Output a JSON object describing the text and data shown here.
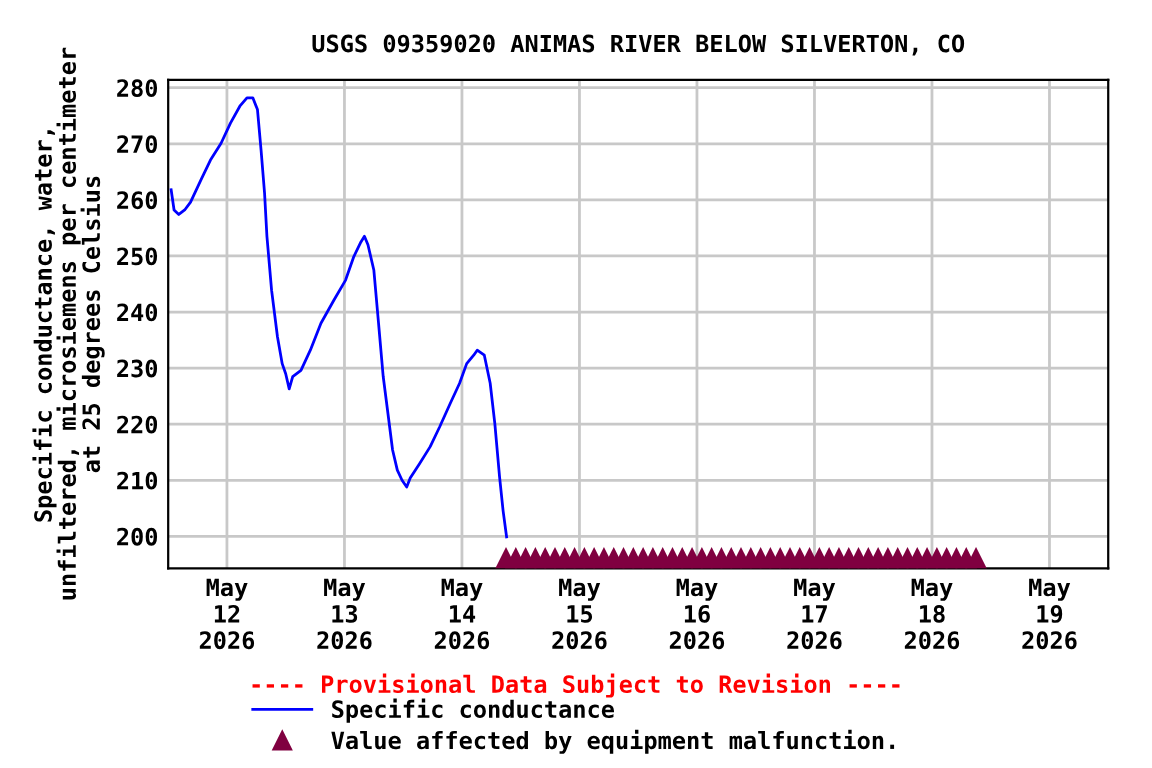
{
  "chart_data": {
    "type": "line",
    "title": "USGS 09359020 ANIMAS RIVER BELOW SILVERTON, CO",
    "ylabel": "Specific conductance, water,\nunfiltered, microsiemens per centimeter\nat 25 degrees Celsius",
    "xlim": [
      "2026-05-11T12:00",
      "2026-05-19T12:00"
    ],
    "xticks": [
      {
        "value": "2026-05-12",
        "label": "May\n12\n2026"
      },
      {
        "value": "2026-05-13",
        "label": "May\n13\n2026"
      },
      {
        "value": "2026-05-14",
        "label": "May\n14\n2026"
      },
      {
        "value": "2026-05-15",
        "label": "May\n15\n2026"
      },
      {
        "value": "2026-05-16",
        "label": "May\n16\n2026"
      },
      {
        "value": "2026-05-17",
        "label": "May\n17\n2026"
      },
      {
        "value": "2026-05-18",
        "label": "May\n18\n2026"
      },
      {
        "value": "2026-05-19",
        "label": "May\n19\n2026"
      }
    ],
    "ylim": [
      194.3,
      281.4
    ],
    "yticks": [
      200,
      210,
      220,
      230,
      240,
      250,
      260,
      270,
      280
    ],
    "grid": true,
    "legend": "bottom",
    "annotations": [
      "---- Provisional Data Subject to Revision ----"
    ],
    "series": [
      {
        "name": "Specific conductance",
        "color": "#0000ff",
        "x": [
          "2026-05-11T12:36",
          "2026-05-11T13:12",
          "2026-05-11T14:10",
          "2026-05-11T15:22",
          "2026-05-11T16:34",
          "2026-05-11T18:43",
          "2026-05-11T20:38",
          "2026-05-11T22:48",
          "2026-05-12T00:43",
          "2026-05-12T02:38",
          "2026-05-12T04:05",
          "2026-05-12T05:17",
          "2026-05-12T06:14",
          "2026-05-12T06:58",
          "2026-05-12T07:41",
          "2026-05-12T08:10",
          "2026-05-12T09:07",
          "2026-05-12T10:19",
          "2026-05-12T11:17",
          "2026-05-12T12:00",
          "2026-05-12T12:43",
          "2026-05-12T13:26",
          "2026-05-12T15:07",
          "2026-05-12T17:02",
          "2026-05-12T19:12",
          "2026-05-12T21:50",
          "2026-05-13T00:14",
          "2026-05-13T01:55",
          "2026-05-13T03:22",
          "2026-05-13T04:05",
          "2026-05-13T04:48",
          "2026-05-13T06:00",
          "2026-05-13T06:58",
          "2026-05-13T07:55",
          "2026-05-13T08:53",
          "2026-05-13T09:50",
          "2026-05-13T10:48",
          "2026-05-13T11:46",
          "2026-05-13T12:43",
          "2026-05-13T13:26",
          "2026-05-13T15:22",
          "2026-05-13T17:31",
          "2026-05-13T19:26",
          "2026-05-13T21:36",
          "2026-05-13T23:31",
          "2026-05-14T00:58",
          "2026-05-14T02:24",
          "2026-05-14T03:07",
          "2026-05-14T04:34",
          "2026-05-14T05:46",
          "2026-05-14T06:43",
          "2026-05-14T07:41",
          "2026-05-14T08:24",
          "2026-05-14T09:07"
        ],
        "values": [
          261.8,
          258.2,
          257.4,
          258.2,
          259.6,
          263.6,
          267.1,
          270.1,
          273.7,
          276.7,
          278.2,
          278.2,
          276.1,
          268.9,
          261.2,
          253.5,
          243.9,
          235.6,
          230.8,
          229,
          226.3,
          228.5,
          229.6,
          233.2,
          238,
          242.1,
          245.7,
          249.9,
          252.5,
          253.5,
          252,
          247.5,
          238,
          228.5,
          221.9,
          215.4,
          211.8,
          210,
          208.8,
          210.4,
          213,
          216,
          219.5,
          223.7,
          227.3,
          230.8,
          232.3,
          233.2,
          232.3,
          227.3,
          220.1,
          210.6,
          204.6,
          199.9
        ]
      },
      {
        "name": "Value affected by equipment malfunction.",
        "type": "scatter",
        "marker": "triangle",
        "color": "#800040",
        "x": [
          "2026-05-14T09:00",
          "2026-05-14T11:00",
          "2026-05-14T13:00",
          "2026-05-14T15:00",
          "2026-05-14T17:00",
          "2026-05-14T19:00",
          "2026-05-14T21:00",
          "2026-05-14T23:00",
          "2026-05-15T01:00",
          "2026-05-15T03:00",
          "2026-05-15T05:00",
          "2026-05-15T07:00",
          "2026-05-15T09:00",
          "2026-05-15T11:00",
          "2026-05-15T13:00",
          "2026-05-15T15:00",
          "2026-05-15T17:00",
          "2026-05-15T19:00",
          "2026-05-15T21:00",
          "2026-05-15T23:00",
          "2026-05-16T01:00",
          "2026-05-16T03:00",
          "2026-05-16T05:00",
          "2026-05-16T07:00",
          "2026-05-16T09:00",
          "2026-05-16T11:00",
          "2026-05-16T13:00",
          "2026-05-16T15:00",
          "2026-05-16T17:00",
          "2026-05-16T19:00",
          "2026-05-16T21:00",
          "2026-05-16T23:00",
          "2026-05-17T01:00",
          "2026-05-17T03:00",
          "2026-05-17T05:00",
          "2026-05-17T07:00",
          "2026-05-17T09:00",
          "2026-05-17T11:00",
          "2026-05-17T13:00",
          "2026-05-17T15:00",
          "2026-05-17T17:00",
          "2026-05-17T19:00",
          "2026-05-17T21:00",
          "2026-05-17T23:00",
          "2026-05-18T01:00",
          "2026-05-18T03:00",
          "2026-05-18T05:00",
          "2026-05-18T07:00",
          "2026-05-18T09:00"
        ],
        "values": [
          195.9,
          195.9,
          195.9,
          195.9,
          195.9,
          195.9,
          195.9,
          195.9,
          195.9,
          195.9,
          195.9,
          195.9,
          195.9,
          195.9,
          195.9,
          195.9,
          195.9,
          195.9,
          195.9,
          195.9,
          195.9,
          195.9,
          195.9,
          195.9,
          195.9,
          195.9,
          195.9,
          195.9,
          195.9,
          195.9,
          195.9,
          195.9,
          195.9,
          195.9,
          195.9,
          195.9,
          195.9,
          195.9,
          195.9,
          195.9,
          195.9,
          195.9,
          195.9,
          195.9,
          195.9,
          195.9,
          195.9,
          195.9,
          195.9
        ]
      }
    ]
  }
}
